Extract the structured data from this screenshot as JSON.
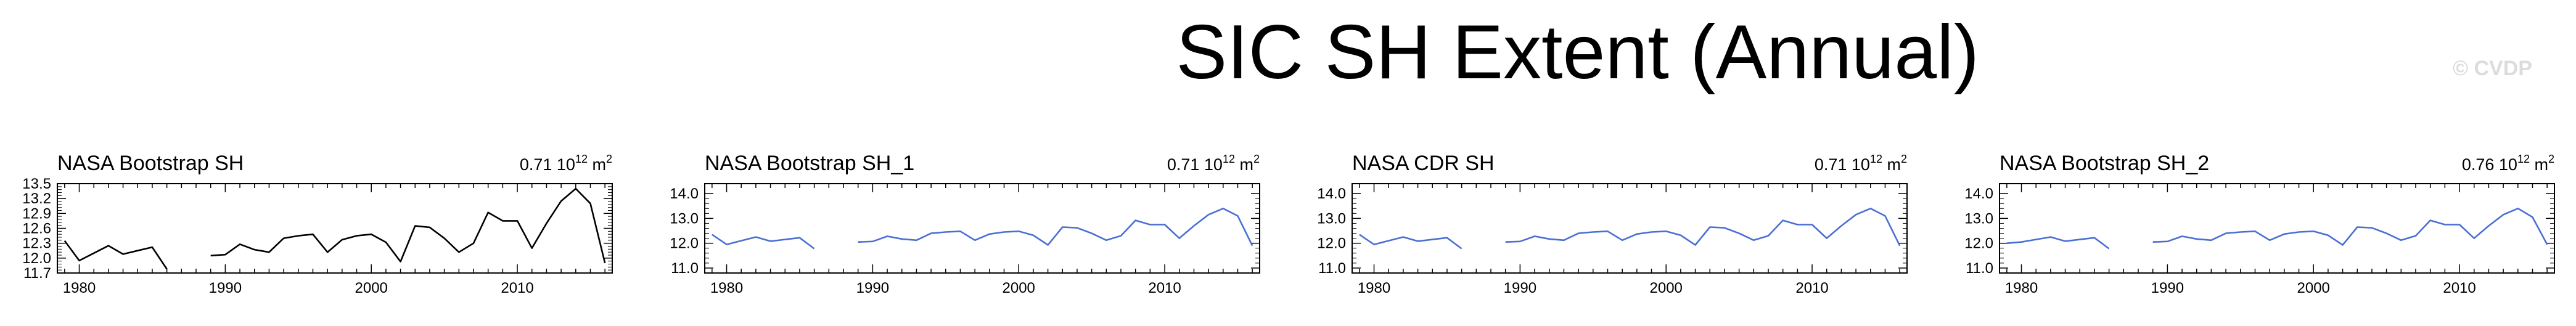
{
  "title": "SIC SH Extent (Annual)",
  "watermark": "© CVDP",
  "chart_data": [
    {
      "type": "line",
      "title": "NASA Bootstrap SH",
      "stat": {
        "value": "0.71",
        "unit_base": "10",
        "unit_exp": "12",
        "unit": "m",
        "unit_pow": "2"
      },
      "line_color": "#000000",
      "x": [
        1979,
        1980,
        1981,
        1982,
        1983,
        1984,
        1985,
        1986,
        1987,
        1988,
        1989,
        1990,
        1991,
        1992,
        1993,
        1994,
        1995,
        1996,
        1997,
        1998,
        1999,
        2000,
        2001,
        2002,
        2003,
        2004,
        2005,
        2006,
        2007,
        2008,
        2009,
        2010,
        2011,
        2012,
        2013,
        2014,
        2015,
        2016
      ],
      "y": [
        12.35,
        11.95,
        12.1,
        12.25,
        12.08,
        12.15,
        12.22,
        11.78,
        null,
        null,
        12.05,
        12.07,
        12.28,
        12.17,
        12.12,
        12.4,
        12.45,
        12.48,
        12.12,
        12.37,
        12.45,
        12.48,
        12.32,
        11.93,
        12.65,
        12.62,
        12.4,
        12.12,
        12.3,
        12.92,
        12.75,
        12.75,
        12.2,
        12.7,
        13.15,
        13.4,
        13.1,
        11.9
      ],
      "xticks": [
        1980,
        1990,
        2000,
        2010
      ],
      "yticks": [
        11.7,
        12.0,
        12.3,
        12.6,
        12.9,
        13.2,
        13.5
      ],
      "ytick_labels": [
        "11.7",
        "12.0",
        "12.3",
        "12.6",
        "12.9",
        "13.2",
        "13.5"
      ],
      "xlim": [
        1978.5,
        2016.5
      ],
      "ylim": [
        11.7,
        13.5
      ]
    },
    {
      "type": "line",
      "title": "NASA Bootstrap SH_1",
      "stat": {
        "value": "0.71",
        "unit_base": "10",
        "unit_exp": "12",
        "unit": "m",
        "unit_pow": "2"
      },
      "line_color": "#4a6fd4",
      "x": [
        1979,
        1980,
        1981,
        1982,
        1983,
        1984,
        1985,
        1986,
        1987,
        1988,
        1989,
        1990,
        1991,
        1992,
        1993,
        1994,
        1995,
        1996,
        1997,
        1998,
        1999,
        2000,
        2001,
        2002,
        2003,
        2004,
        2005,
        2006,
        2007,
        2008,
        2009,
        2010,
        2011,
        2012,
        2013,
        2014,
        2015,
        2016
      ],
      "y": [
        12.35,
        11.95,
        12.1,
        12.25,
        12.08,
        12.15,
        12.22,
        11.78,
        null,
        null,
        12.05,
        12.07,
        12.28,
        12.17,
        12.12,
        12.4,
        12.45,
        12.48,
        12.12,
        12.37,
        12.45,
        12.48,
        12.32,
        11.93,
        12.65,
        12.62,
        12.4,
        12.12,
        12.3,
        12.92,
        12.75,
        12.75,
        12.2,
        12.7,
        13.15,
        13.4,
        13.1,
        11.9
      ],
      "xticks": [
        1980,
        1990,
        2000,
        2010
      ],
      "yticks": [
        11.0,
        12.0,
        13.0,
        14.0
      ],
      "ytick_labels": [
        "11.0",
        "12.0",
        "13.0",
        "14.0"
      ],
      "xlim": [
        1978.5,
        2016.5
      ],
      "ylim": [
        10.8,
        14.4
      ]
    },
    {
      "type": "line",
      "title": "NASA CDR SH",
      "stat": {
        "value": "0.71",
        "unit_base": "10",
        "unit_exp": "12",
        "unit": "m",
        "unit_pow": "2"
      },
      "line_color": "#4a6fd4",
      "x": [
        1979,
        1980,
        1981,
        1982,
        1983,
        1984,
        1985,
        1986,
        1987,
        1988,
        1989,
        1990,
        1991,
        1992,
        1993,
        1994,
        1995,
        1996,
        1997,
        1998,
        1999,
        2000,
        2001,
        2002,
        2003,
        2004,
        2005,
        2006,
        2007,
        2008,
        2009,
        2010,
        2011,
        2012,
        2013,
        2014,
        2015,
        2016
      ],
      "y": [
        12.35,
        11.95,
        12.1,
        12.25,
        12.08,
        12.15,
        12.22,
        11.78,
        null,
        null,
        12.05,
        12.07,
        12.28,
        12.17,
        12.12,
        12.4,
        12.45,
        12.48,
        12.12,
        12.37,
        12.45,
        12.48,
        12.32,
        11.93,
        12.65,
        12.62,
        12.4,
        12.12,
        12.3,
        12.92,
        12.75,
        12.75,
        12.2,
        12.7,
        13.15,
        13.4,
        13.1,
        11.9
      ],
      "xticks": [
        1980,
        1990,
        2000,
        2010
      ],
      "yticks": [
        11.0,
        12.0,
        13.0,
        14.0
      ],
      "ytick_labels": [
        "11.0",
        "12.0",
        "13.0",
        "14.0"
      ],
      "xlim": [
        1978.5,
        2016.5
      ],
      "ylim": [
        10.8,
        14.4
      ]
    },
    {
      "type": "line",
      "title": "NASA Bootstrap SH_2",
      "stat": {
        "value": "0.76",
        "unit_base": "10",
        "unit_exp": "12",
        "unit": "m",
        "unit_pow": "2"
      },
      "line_color": "#4a6fd4",
      "x": [
        1979,
        1980,
        1981,
        1982,
        1983,
        1984,
        1985,
        1986,
        1987,
        1988,
        1989,
        1990,
        1991,
        1992,
        1993,
        1994,
        1995,
        1996,
        1997,
        1998,
        1999,
        2000,
        2001,
        2002,
        2003,
        2004,
        2005,
        2006,
        2007,
        2008,
        2009,
        2010,
        2011,
        2012,
        2013,
        2014,
        2015,
        2016
      ],
      "y": [
        12.0,
        12.05,
        12.15,
        12.25,
        12.08,
        12.15,
        12.22,
        11.78,
        null,
        null,
        12.05,
        12.07,
        12.28,
        12.17,
        12.12,
        12.4,
        12.45,
        12.48,
        12.12,
        12.37,
        12.45,
        12.48,
        12.32,
        11.93,
        12.65,
        12.62,
        12.4,
        12.12,
        12.3,
        12.92,
        12.75,
        12.75,
        12.2,
        12.7,
        13.15,
        13.4,
        13.05,
        11.95
      ],
      "xticks": [
        1980,
        1990,
        2000,
        2010
      ],
      "yticks": [
        11.0,
        12.0,
        13.0,
        14.0
      ],
      "ytick_labels": [
        "11.0",
        "12.0",
        "13.0",
        "14.0"
      ],
      "xlim": [
        1978.5,
        2016.5
      ],
      "ylim": [
        10.8,
        14.4
      ]
    }
  ]
}
